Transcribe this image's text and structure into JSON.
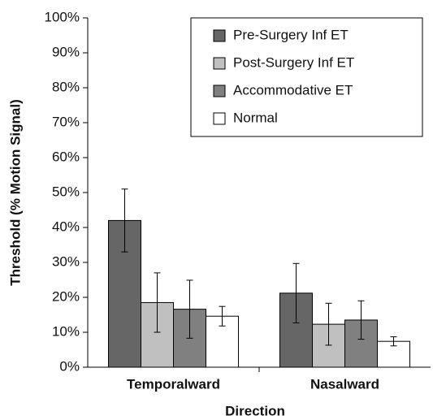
{
  "chart_data": {
    "type": "bar",
    "x_label": "Direction",
    "y_label": "Threshold (% Motion Signal)",
    "categories": [
      "Temporalward",
      "Nasalward"
    ],
    "series": [
      {
        "name": "Pre-Surgery Inf ET",
        "color": "#666666",
        "values": [
          42,
          21.2
        ],
        "errors": [
          9,
          8.5
        ]
      },
      {
        "name": "Post-Surgery Inf ET",
        "color": "#c0c0c0",
        "values": [
          18.5,
          12.3
        ],
        "errors": [
          8.5,
          6
        ]
      },
      {
        "name": "Accommodative ET",
        "color": "#808080",
        "values": [
          16.6,
          13.5
        ],
        "errors": [
          8.3,
          5.5
        ]
      },
      {
        "name": "Normal",
        "color": "#ffffff",
        "values": [
          14.6,
          7.4
        ],
        "errors": [
          2.8,
          1.3
        ]
      }
    ],
    "ylim": [
      0,
      100
    ],
    "yticks": [
      {
        "value": 0,
        "label": "0%"
      },
      {
        "value": 10,
        "label": "10%"
      },
      {
        "value": 20,
        "label": "20%"
      },
      {
        "value": 30,
        "label": "30%"
      },
      {
        "value": 40,
        "label": "40%"
      },
      {
        "value": 50,
        "label": "50%"
      },
      {
        "value": 60,
        "label": "60%"
      },
      {
        "value": 70,
        "label": "70%"
      },
      {
        "value": 80,
        "label": "80%"
      },
      {
        "value": 90,
        "label": "90%"
      },
      {
        "value": 100,
        "label": "100%"
      }
    ],
    "legend": "top-right"
  }
}
